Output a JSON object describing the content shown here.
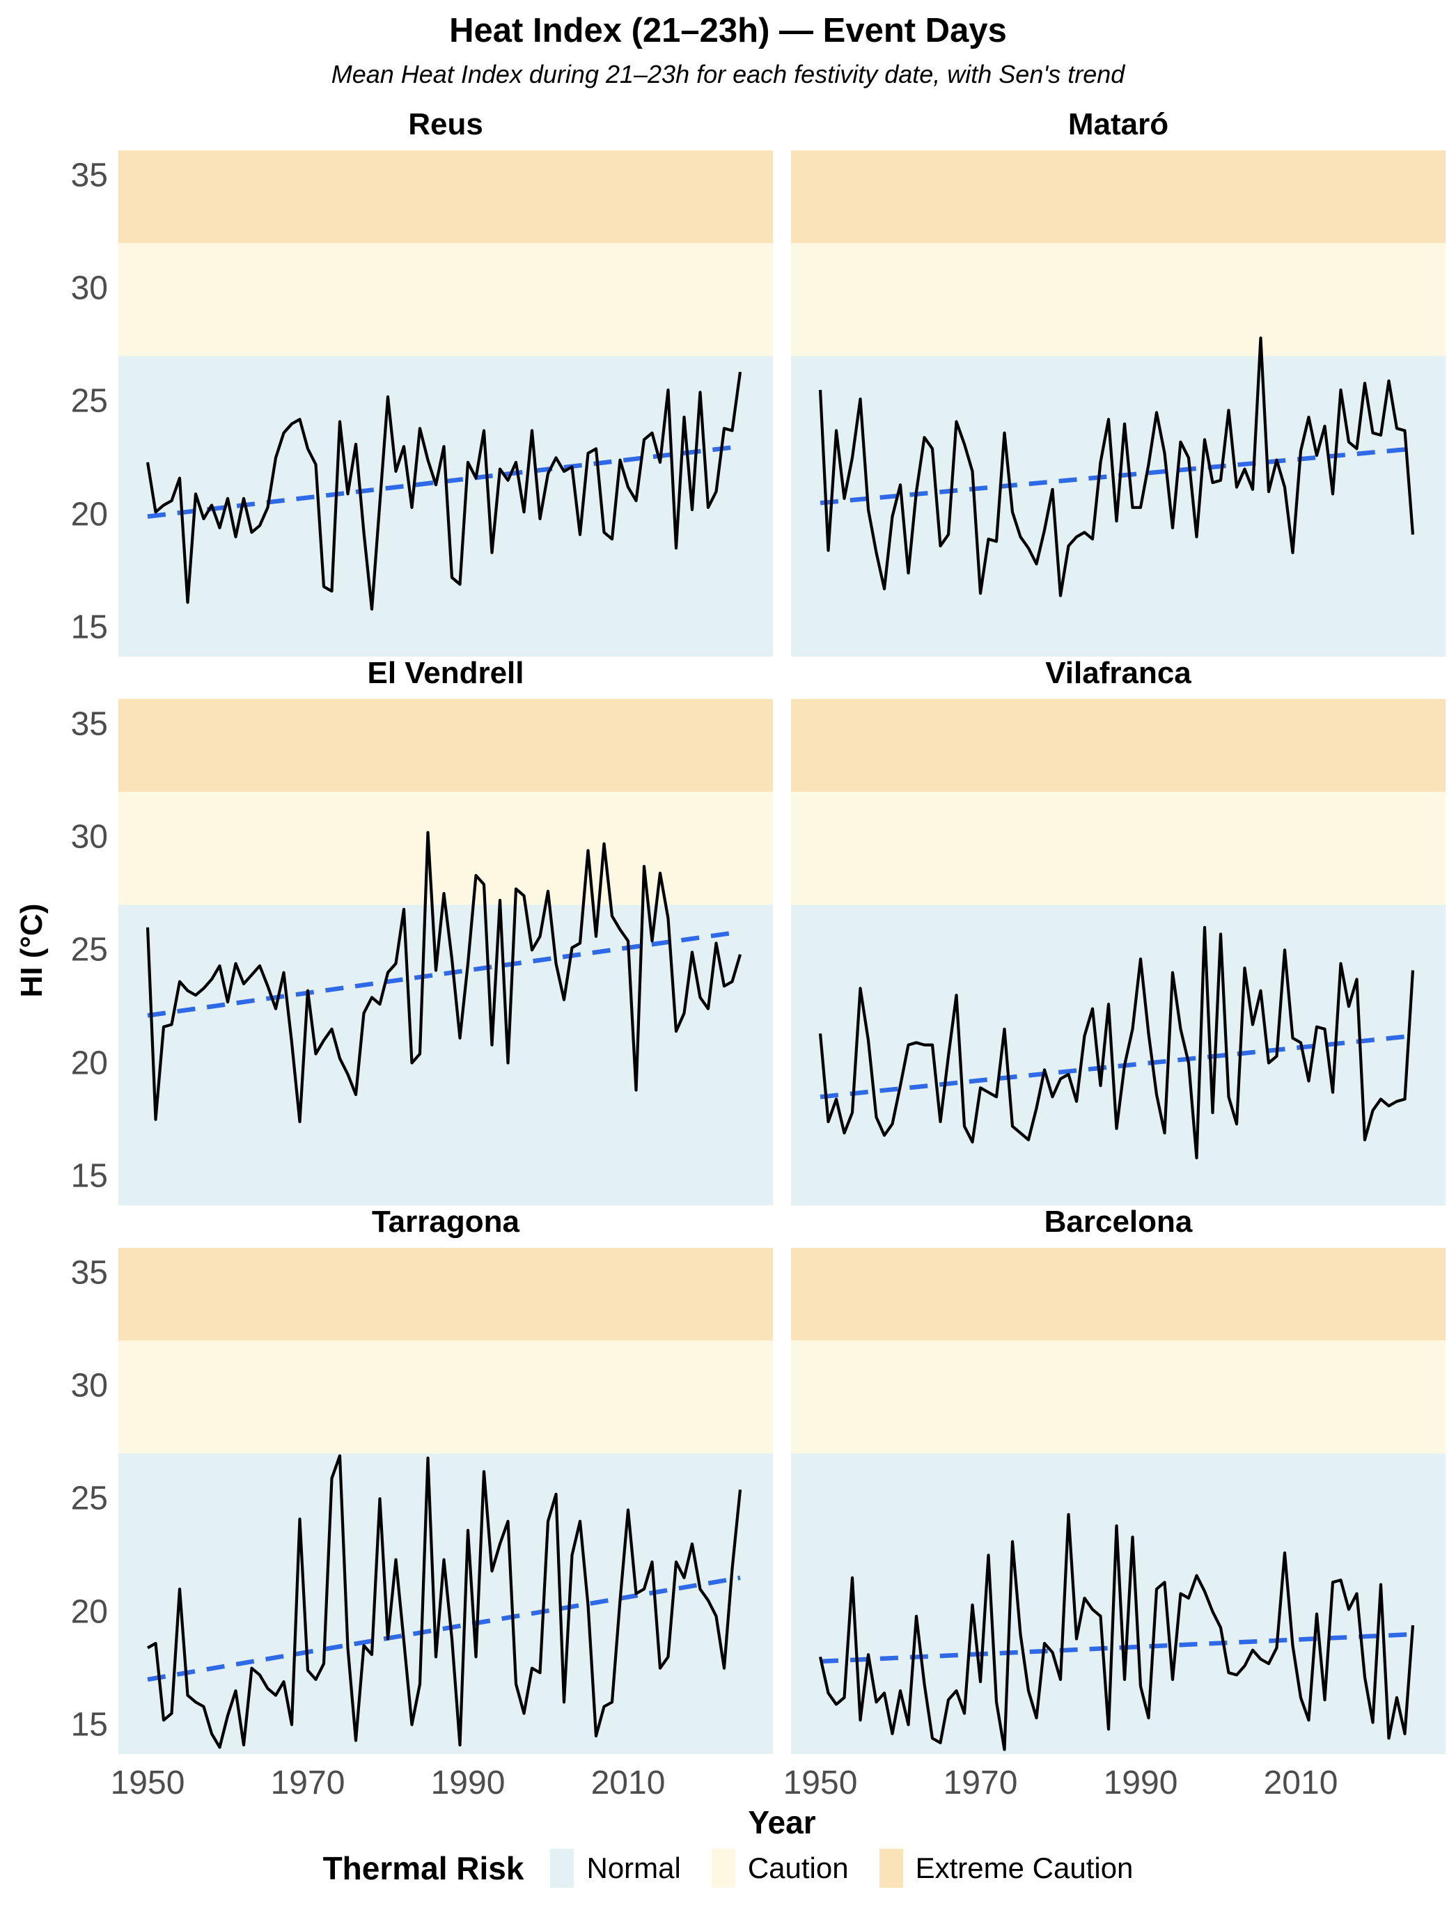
{
  "title": "Heat Index (21–23h) — Event Days",
  "subtitle": "Mean Heat Index during 21–23h for each festivity date, with Sen's trend",
  "ylabel": "HI (°C)",
  "xlabel": "Year",
  "legend": {
    "title": "Thermal Risk",
    "items": [
      {
        "label": "Normal",
        "color": "#E3F1F4"
      },
      {
        "label": "Caution",
        "color": "#FDF8E1"
      },
      {
        "label": "Extreme Caution",
        "color": "#FAE3B8"
      }
    ]
  },
  "colors": {
    "series_line": "#000000",
    "trend_line": "#2E6AE8",
    "tick_text": "#4d4d4d",
    "band_normal": "#E3F1F4",
    "band_caution": "#FDF8E1",
    "band_extreme": "#FAE3B8"
  },
  "chart_data": {
    "type": "line",
    "x_start": 1950,
    "x_end": 2024,
    "ylim": [
      13.7,
      36.1
    ],
    "yticks": [
      35,
      30,
      25,
      20,
      15
    ],
    "xticks": [
      1950,
      1970,
      1990,
      2010
    ],
    "grid": false,
    "legend_position": "bottom",
    "bands": [
      {
        "label": "Normal",
        "from": 13.7,
        "to": 27,
        "color": "#E3F1F4"
      },
      {
        "label": "Caution",
        "from": 27,
        "to": 32,
        "color": "#FDF8E1"
      },
      {
        "label": "Extreme Caution",
        "from": 32,
        "to": 36.1,
        "color": "#FAE3B8"
      }
    ],
    "panels": [
      {
        "name": "Reus",
        "trend": [
          19.9,
          23.0
        ],
        "values": [
          22.3,
          20.1,
          20.4,
          20.6,
          21.6,
          16.1,
          20.9,
          19.8,
          20.4,
          19.4,
          20.7,
          19.0,
          20.7,
          19.2,
          19.5,
          20.3,
          22.5,
          23.6,
          24.0,
          24.2,
          22.9,
          22.2,
          16.8,
          16.6,
          24.1,
          20.9,
          23.1,
          19.2,
          15.8,
          20.5,
          25.2,
          21.9,
          23.0,
          20.3,
          23.8,
          22.4,
          21.3,
          23.0,
          17.2,
          16.9,
          22.3,
          21.6,
          23.7,
          18.3,
          22.0,
          21.5,
          22.3,
          20.1,
          23.7,
          19.8,
          21.8,
          22.5,
          21.9,
          22.1,
          19.1,
          22.7,
          22.9,
          19.2,
          18.9,
          22.4,
          21.2,
          20.6,
          23.3,
          23.6,
          22.3,
          25.5,
          18.5,
          24.3,
          20.2,
          25.4,
          20.3,
          21.0,
          23.8,
          23.7,
          26.3
        ]
      },
      {
        "name": "Mataró",
        "trend": [
          20.5,
          22.9
        ],
        "values": [
          25.5,
          18.4,
          23.7,
          20.7,
          22.5,
          25.1,
          20.2,
          18.3,
          16.7,
          19.9,
          21.3,
          17.4,
          21.0,
          23.4,
          22.9,
          18.6,
          19.1,
          24.1,
          23.1,
          21.9,
          16.5,
          18.9,
          18.8,
          23.6,
          20.1,
          19.0,
          18.5,
          17.8,
          19.3,
          21.1,
          16.4,
          18.6,
          19.0,
          19.2,
          18.9,
          22.3,
          24.2,
          19.7,
          24.0,
          20.3,
          20.3,
          22.2,
          24.5,
          22.7,
          19.4,
          23.2,
          22.5,
          19.0,
          23.3,
          21.4,
          21.5,
          24.6,
          21.2,
          22.0,
          21.1,
          27.8,
          21.0,
          22.4,
          21.2,
          18.3,
          22.8,
          24.3,
          22.6,
          23.9,
          20.9,
          25.5,
          23.2,
          22.9,
          25.8,
          23.6,
          23.5,
          25.9,
          23.8,
          23.7,
          19.1
        ]
      },
      {
        "name": "El Vendrell",
        "trend": [
          22.1,
          25.8
        ],
        "values": [
          26.0,
          17.5,
          21.6,
          21.7,
          23.6,
          23.2,
          23.0,
          23.3,
          23.7,
          24.3,
          22.7,
          24.4,
          23.5,
          23.9,
          24.3,
          23.4,
          22.4,
          24.0,
          20.9,
          17.4,
          23.2,
          20.4,
          21.0,
          21.5,
          20.2,
          19.5,
          18.6,
          22.2,
          22.9,
          22.6,
          24.0,
          24.4,
          26.8,
          20.0,
          20.4,
          30.2,
          24.1,
          27.5,
          24.6,
          21.1,
          24.4,
          28.3,
          27.9,
          20.8,
          27.2,
          20.0,
          27.7,
          27.4,
          25.0,
          25.6,
          27.6,
          24.4,
          22.8,
          25.1,
          25.3,
          29.4,
          25.6,
          29.7,
          26.5,
          25.9,
          25.4,
          18.8,
          28.7,
          25.4,
          28.4,
          26.4,
          21.4,
          22.2,
          24.9,
          22.9,
          22.4,
          25.3,
          23.4,
          23.6,
          24.8
        ]
      },
      {
        "name": "Vilafranca",
        "trend": [
          18.5,
          21.2
        ],
        "values": [
          21.3,
          17.4,
          18.4,
          16.9,
          17.8,
          23.3,
          21.0,
          17.6,
          16.8,
          17.3,
          19.0,
          20.8,
          20.9,
          20.8,
          20.8,
          17.4,
          20.3,
          23.0,
          17.2,
          16.5,
          18.9,
          18.7,
          18.5,
          21.5,
          17.2,
          16.9,
          16.6,
          18.0,
          19.7,
          18.5,
          19.3,
          19.5,
          18.3,
          21.2,
          22.4,
          19.0,
          22.6,
          17.1,
          19.9,
          21.5,
          24.6,
          21.3,
          18.6,
          16.9,
          24.0,
          21.5,
          20.0,
          15.8,
          26.0,
          17.8,
          25.7,
          18.5,
          17.3,
          24.2,
          21.7,
          23.2,
          20.0,
          20.3,
          25.0,
          21.1,
          20.9,
          19.2,
          21.6,
          21.5,
          18.7,
          24.4,
          22.5,
          23.7,
          16.6,
          17.9,
          18.4,
          18.1,
          18.3,
          18.4,
          24.1
        ]
      },
      {
        "name": "Tarragona",
        "trend": [
          17.0,
          21.5
        ],
        "values": [
          18.4,
          18.6,
          15.2,
          15.5,
          21.0,
          16.3,
          16.0,
          15.8,
          14.6,
          14.0,
          15.4,
          16.5,
          14.1,
          17.5,
          17.2,
          16.6,
          16.3,
          16.9,
          15.0,
          24.1,
          17.4,
          17.0,
          17.7,
          25.9,
          26.9,
          18.4,
          14.3,
          18.5,
          18.1,
          25.0,
          18.8,
          22.3,
          18.7,
          15.0,
          16.8,
          26.8,
          18.0,
          22.3,
          18.8,
          14.1,
          23.6,
          18.0,
          26.2,
          21.8,
          23.0,
          24.0,
          16.8,
          15.5,
          17.5,
          17.3,
          24.0,
          25.2,
          16.0,
          22.5,
          24.0,
          20.3,
          14.5,
          15.8,
          16.0,
          20.5,
          24.5,
          20.8,
          21.0,
          22.2,
          17.5,
          18.0,
          22.2,
          21.5,
          23.0,
          21.0,
          20.5,
          19.8,
          17.5,
          21.9,
          25.4
        ]
      },
      {
        "name": "Barcelona",
        "trend": [
          17.8,
          19.0
        ],
        "values": [
          18.0,
          16.4,
          15.9,
          16.2,
          21.5,
          15.2,
          18.1,
          16.0,
          16.4,
          14.6,
          16.5,
          15.0,
          19.8,
          16.8,
          14.4,
          14.2,
          16.1,
          16.5,
          15.5,
          20.3,
          16.9,
          22.5,
          16.0,
          13.9,
          23.1,
          19.0,
          16.5,
          15.3,
          18.6,
          18.2,
          17.0,
          24.3,
          18.8,
          20.6,
          20.1,
          19.8,
          14.8,
          23.8,
          17.0,
          23.3,
          16.7,
          15.3,
          21.0,
          21.3,
          17.0,
          20.8,
          20.6,
          21.6,
          20.9,
          20.0,
          19.3,
          17.3,
          17.2,
          17.6,
          18.3,
          17.9,
          17.7,
          18.4,
          22.6,
          18.5,
          16.2,
          15.2,
          19.9,
          16.1,
          21.3,
          21.4,
          20.1,
          20.8,
          17.1,
          15.1,
          21.2,
          14.4,
          16.2,
          14.6,
          19.4
        ]
      }
    ]
  }
}
